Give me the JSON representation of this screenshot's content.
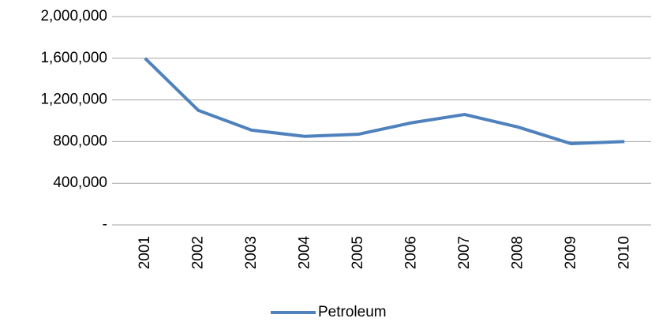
{
  "chart_data": {
    "type": "line",
    "categories": [
      "2001",
      "2002",
      "2003",
      "2004",
      "2005",
      "2006",
      "2007",
      "2008",
      "2009",
      "2010"
    ],
    "series": [
      {
        "name": "Petroleum",
        "color": "#4f81bd",
        "values": [
          1600000,
          1100000,
          910000,
          850000,
          870000,
          980000,
          1060000,
          940000,
          780000,
          800000
        ]
      }
    ],
    "ylim": [
      0,
      2000000
    ],
    "yticks": [
      {
        "value": 0,
        "label": "-"
      },
      {
        "value": 400000,
        "label": "400,000"
      },
      {
        "value": 800000,
        "label": "800,000"
      },
      {
        "value": 1200000,
        "label": "1,200,000"
      },
      {
        "value": 1600000,
        "label": "1,600,000"
      },
      {
        "value": 2000000,
        "label": "2,000,000"
      }
    ],
    "grid": true,
    "legend": "bottom"
  }
}
